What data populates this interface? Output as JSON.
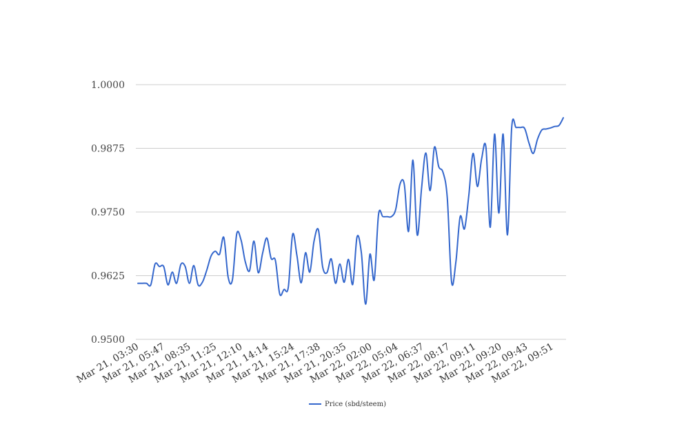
{
  "chart_data": {
    "type": "line",
    "title": "",
    "xlabel": "",
    "ylabel": "",
    "ylim": [
      0.95,
      1.0
    ],
    "y_ticks": [
      "1.0000",
      "0.9875",
      "0.9750",
      "0.9625",
      "0.9500"
    ],
    "y_tick_values": [
      1.0,
      0.9875,
      0.975,
      0.9625,
      0.95
    ],
    "x_tick_labels": [
      "Mar 21, 03:30",
      "Mar 21, 05:47",
      "Mar 21, 08:35",
      "Mar 21, 11:25",
      "Mar 21, 12:10",
      "Mar 21, 14:14",
      "Mar 21, 15:24",
      "Mar 21, 17:38",
      "Mar 21, 20:35",
      "Mar 22, 02:00",
      "Mar 22, 05:04",
      "Mar 22, 06:37",
      "Mar 22, 08:17",
      "Mar 22, 09:11",
      "Mar 22, 09:20",
      "Mar 22, 09:43",
      "Mar 22, 09:51"
    ],
    "grid": true,
    "legend_position": "bottom",
    "series": [
      {
        "name": "Price (sbd/steem)",
        "color": "#3366cc",
        "values": [
          0.961,
          0.961,
          0.961,
          0.9607,
          0.9648,
          0.9643,
          0.9643,
          0.9607,
          0.9632,
          0.961,
          0.9647,
          0.9643,
          0.961,
          0.9645,
          0.9607,
          0.9612,
          0.9635,
          0.9663,
          0.9673,
          0.9667,
          0.97,
          0.9622,
          0.9617,
          0.9707,
          0.9695,
          0.9652,
          0.9635,
          0.9693,
          0.9631,
          0.9668,
          0.9699,
          0.9659,
          0.9655,
          0.9589,
          0.9598,
          0.9602,
          0.9706,
          0.9665,
          0.9611,
          0.967,
          0.9632,
          0.9693,
          0.9715,
          0.9642,
          0.9631,
          0.9658,
          0.961,
          0.9648,
          0.9612,
          0.9657,
          0.9608,
          0.9701,
          0.967,
          0.9569,
          0.9667,
          0.9617,
          0.9745,
          0.9741,
          0.9741,
          0.9741,
          0.9755,
          0.9805,
          0.9804,
          0.9712,
          0.9852,
          0.9705,
          0.9795,
          0.9866,
          0.9792,
          0.9877,
          0.9839,
          0.9828,
          0.9778,
          0.9612,
          0.9652,
          0.9741,
          0.9717,
          0.9782,
          0.9865,
          0.98,
          0.9855,
          0.9877,
          0.972,
          0.9903,
          0.9748,
          0.9903,
          0.9705,
          0.9917,
          0.9916,
          0.9916,
          0.9914,
          0.9886,
          0.9865,
          0.9893,
          0.9911,
          0.9913,
          0.9915,
          0.9918,
          0.992,
          0.9935
        ]
      }
    ]
  },
  "legend": {
    "items": [
      {
        "label": "Price (sbd/steem)",
        "color": "#3366cc"
      }
    ]
  }
}
